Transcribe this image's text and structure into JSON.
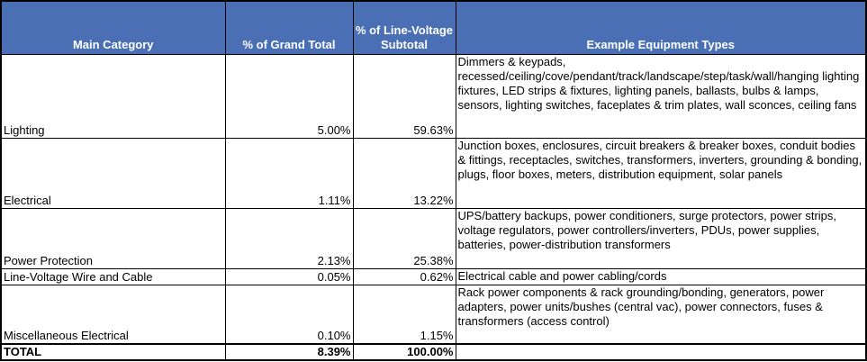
{
  "table": {
    "header": [
      "Main Category",
      "% of Grand Total",
      "% of Line-Voltage Subtotal",
      "Example Equipment Types"
    ],
    "rows": [
      [
        "Lighting",
        "5.00%",
        "59.63%",
        "Dimmers & keypads, recessed/ceiling/cove/pendant/track/landscape/step/task/wall/hanging lighting fixtures, LED strips & fixtures, lighting panels, ballasts, bulbs & lamps, sensors, lighting switches, faceplates & trim plates, wall sconces, ceiling fans"
      ],
      [
        "Electrical",
        "1.11%",
        "13.22%",
        "Junction boxes, enclosures, circuit breakers & breaker boxes, conduit bodies & fittings, receptacles, switches, transformers, inverters, grounding & bonding, plugs, floor boxes, meters, distribution equipment, solar panels"
      ],
      [
        "Power Protection",
        "2.13%",
        "25.38%",
        "UPS/battery backups, power conditioners, surge protectors, power strips, voltage regulators, power controllers/inverters, PDUs, power supplies, batteries, power-distribution transformers"
      ],
      [
        "Line-Voltage Wire and Cable",
        "0.05%",
        "0.62%",
        "Electrical cable and power cabling/cords"
      ],
      [
        "Miscellaneous Electrical",
        "0.10%",
        "1.15%",
        "Rack power components & rack grounding/bonding, generators, power adapters, power units/bushes (central vac), power connectors, fuses & transformers (access control)"
      ]
    ],
    "total": [
      "TOTAL",
      "8.39%",
      "100.00%"
    ]
  }
}
